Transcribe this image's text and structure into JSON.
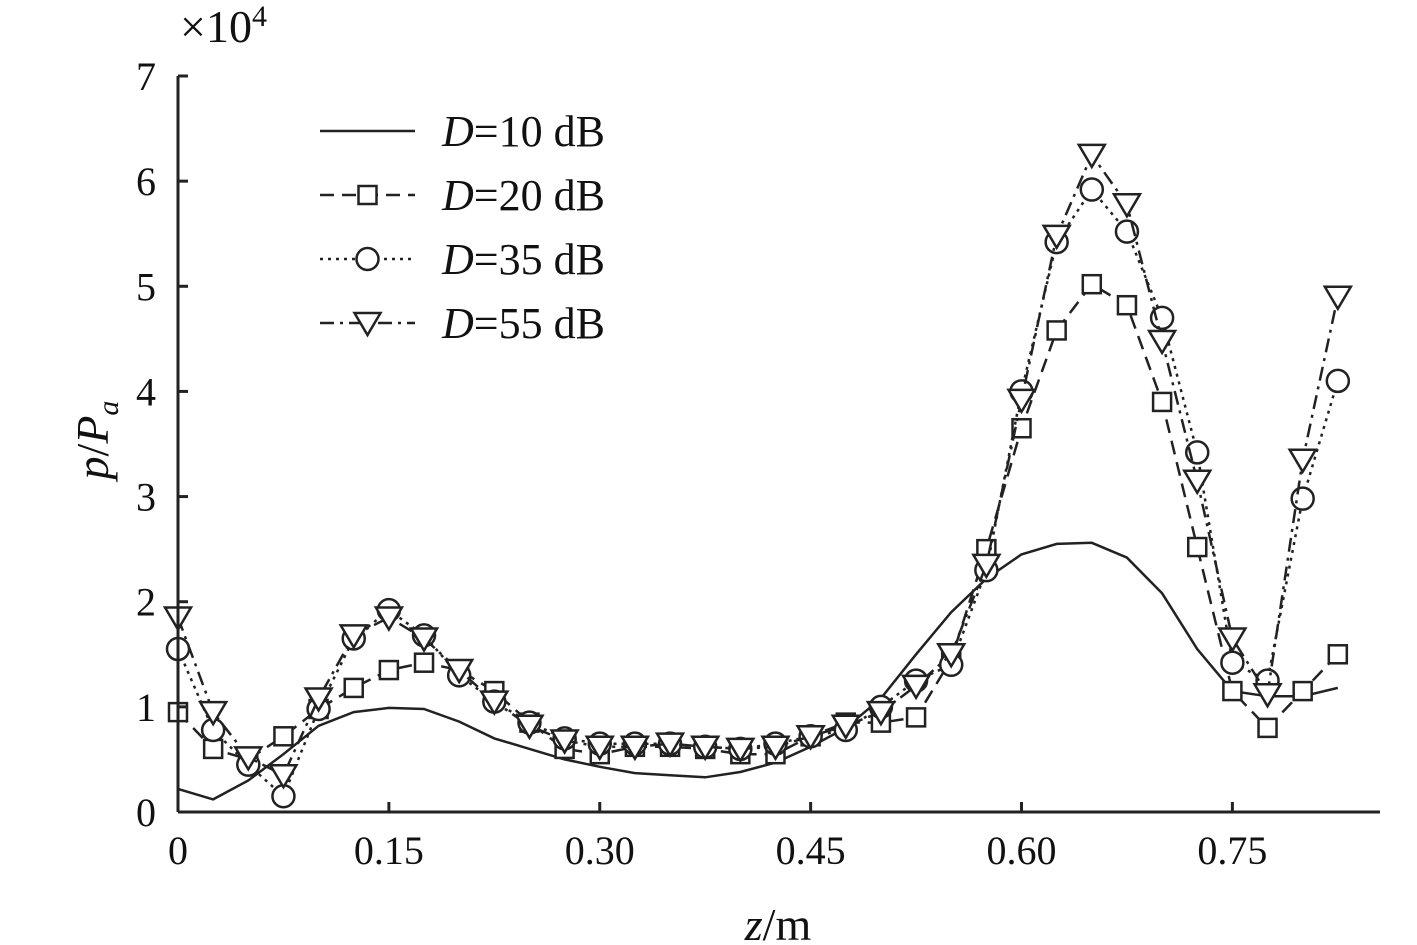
{
  "chart_data": {
    "type": "line",
    "title": "",
    "xlabel": {
      "var": "z",
      "unit": "/m"
    },
    "ylabel": {
      "var": "p",
      "sep": "/",
      "var2": "P",
      "sub": "a"
    },
    "y_multiplier": {
      "prefix": "×10",
      "exp": "4"
    },
    "xlim": [
      0,
      0.855
    ],
    "ylim": [
      0,
      7
    ],
    "xticks": [
      0,
      0.15,
      0.3,
      0.45,
      0.6,
      0.75
    ],
    "xtick_labels": [
      "0",
      "0.15",
      "0.30",
      "0.45",
      "0.60",
      "0.75"
    ],
    "yticks": [
      0,
      1,
      2,
      3,
      4,
      5,
      6,
      7
    ],
    "ytick_labels": [
      "0",
      "1",
      "2",
      "3",
      "4",
      "5",
      "6",
      "7"
    ],
    "grid": false,
    "legend_position": "top-left",
    "series": [
      {
        "name": "=10 dB",
        "legend_var": "D",
        "style": "solid",
        "marker": "none",
        "x": [
          0,
          0.025,
          0.05,
          0.075,
          0.1,
          0.125,
          0.15,
          0.175,
          0.2,
          0.225,
          0.25,
          0.275,
          0.3,
          0.325,
          0.35,
          0.375,
          0.4,
          0.425,
          0.45,
          0.475,
          0.5,
          0.525,
          0.55,
          0.575,
          0.6,
          0.625,
          0.65,
          0.675,
          0.7,
          0.725,
          0.75,
          0.775,
          0.8,
          0.825
        ],
        "y": [
          0.22,
          0.12,
          0.3,
          0.55,
          0.82,
          0.95,
          0.99,
          0.98,
          0.86,
          0.7,
          0.6,
          0.5,
          0.43,
          0.37,
          0.35,
          0.33,
          0.38,
          0.47,
          0.62,
          0.8,
          1.08,
          1.5,
          1.9,
          2.22,
          2.45,
          2.55,
          2.56,
          2.42,
          2.08,
          1.55,
          1.15,
          1.1,
          1.1,
          1.18
        ]
      },
      {
        "name": "=20 dB",
        "legend_var": "D",
        "style": "dashed",
        "marker": "square",
        "x": [
          0,
          0.025,
          0.05,
          0.075,
          0.1,
          0.125,
          0.15,
          0.175,
          0.2,
          0.225,
          0.25,
          0.275,
          0.3,
          0.325,
          0.35,
          0.375,
          0.4,
          0.425,
          0.45,
          0.475,
          0.5,
          0.525,
          0.55,
          0.575,
          0.6,
          0.625,
          0.65,
          0.675,
          0.7,
          0.725,
          0.75,
          0.775,
          0.8,
          0.825
        ],
        "y": [
          0.95,
          0.6,
          0.5,
          0.72,
          0.98,
          1.18,
          1.35,
          1.42,
          1.35,
          1.15,
          0.85,
          0.6,
          0.55,
          0.62,
          0.62,
          0.6,
          0.55,
          0.55,
          0.72,
          0.85,
          0.85,
          0.9,
          1.45,
          2.5,
          3.65,
          4.58,
          5.02,
          4.82,
          3.9,
          2.52,
          1.15,
          0.8,
          1.15,
          1.5
        ]
      },
      {
        "name": "=35 dB",
        "legend_var": "D",
        "style": "dotted",
        "marker": "circle",
        "x": [
          0,
          0.025,
          0.05,
          0.075,
          0.1,
          0.125,
          0.15,
          0.175,
          0.2,
          0.225,
          0.25,
          0.275,
          0.3,
          0.325,
          0.35,
          0.375,
          0.4,
          0.425,
          0.45,
          0.475,
          0.5,
          0.525,
          0.55,
          0.575,
          0.6,
          0.625,
          0.65,
          0.675,
          0.7,
          0.725,
          0.75,
          0.775,
          0.8,
          0.825
        ],
        "y": [
          1.55,
          0.78,
          0.45,
          0.15,
          0.98,
          1.65,
          1.92,
          1.68,
          1.3,
          1.05,
          0.85,
          0.7,
          0.65,
          0.65,
          0.65,
          0.62,
          0.6,
          0.65,
          0.72,
          0.78,
          1.0,
          1.25,
          1.4,
          2.3,
          4.0,
          5.42,
          5.92,
          5.52,
          4.7,
          3.42,
          1.42,
          1.25,
          2.98,
          4.1
        ]
      },
      {
        "name": "=55 dB",
        "legend_var": "D",
        "style": "dashdot",
        "marker": "triangle-down",
        "x": [
          0,
          0.025,
          0.05,
          0.075,
          0.1,
          0.125,
          0.15,
          0.175,
          0.2,
          0.225,
          0.25,
          0.275,
          0.3,
          0.325,
          0.35,
          0.375,
          0.4,
          0.425,
          0.45,
          0.475,
          0.5,
          0.525,
          0.55,
          0.575,
          0.6,
          0.625,
          0.65,
          0.675,
          0.7,
          0.725,
          0.75,
          0.775,
          0.8,
          0.825
        ],
        "y": [
          1.85,
          0.95,
          0.52,
          0.35,
          1.08,
          1.68,
          1.85,
          1.65,
          1.35,
          1.05,
          0.82,
          0.68,
          0.62,
          0.62,
          0.65,
          0.62,
          0.6,
          0.62,
          0.72,
          0.82,
          0.95,
          1.2,
          1.5,
          2.35,
          3.92,
          5.48,
          6.25,
          5.78,
          4.48,
          3.15,
          1.65,
          1.12,
          3.35,
          4.9
        ]
      }
    ]
  }
}
